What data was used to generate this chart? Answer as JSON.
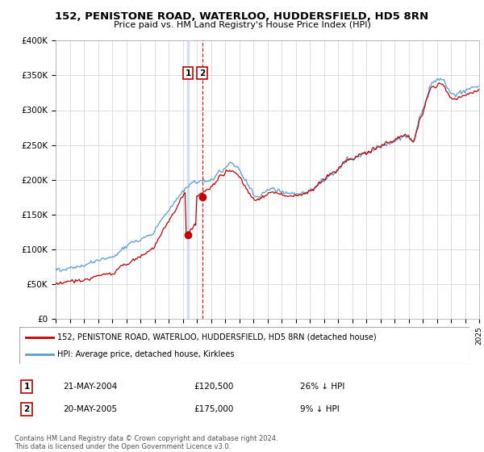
{
  "title": "152, PENISTONE ROAD, WATERLOO, HUDDERSFIELD, HD5 8RN",
  "subtitle": "Price paid vs. HM Land Registry's House Price Index (HPI)",
  "legend_line1": "152, PENISTONE ROAD, WATERLOO, HUDDERSFIELD, HD5 8RN (detached house)",
  "legend_line2": "HPI: Average price, detached house, Kirklees",
  "transaction1_date": "21-MAY-2004",
  "transaction1_price": "£120,500",
  "transaction1_hpi": "26% ↓ HPI",
  "transaction1_year": 2004.38,
  "transaction1_value": 120500,
  "transaction2_date": "20-MAY-2005",
  "transaction2_price": "£175,000",
  "transaction2_hpi": "9% ↓ HPI",
  "transaction2_year": 2005.38,
  "transaction2_value": 175000,
  "footer_line1": "Contains HM Land Registry data © Crown copyright and database right 2024.",
  "footer_line2": "This data is licensed under the Open Government Licence v3.0.",
  "ylim": [
    0,
    400000
  ],
  "yticks": [
    0,
    50000,
    100000,
    150000,
    200000,
    250000,
    300000,
    350000,
    400000
  ],
  "ytick_labels": [
    "£0",
    "£50K",
    "£100K",
    "£150K",
    "£200K",
    "£250K",
    "£300K",
    "£350K",
    "£400K"
  ],
  "hpi_color": "#5b9bd5",
  "price_color": "#c00000",
  "bg_color": "#ffffff",
  "grid_color": "#d0d0d0",
  "hpi_data_years": [
    1995.0,
    1995.083,
    1995.167,
    1995.25,
    1995.333,
    1995.417,
    1995.5,
    1995.583,
    1995.667,
    1995.75,
    1995.833,
    1995.917,
    1996.0,
    1996.083,
    1996.167,
    1996.25,
    1996.333,
    1996.417,
    1996.5,
    1996.583,
    1996.667,
    1996.75,
    1996.833,
    1996.917,
    1997.0,
    1997.083,
    1997.167,
    1997.25,
    1997.333,
    1997.417,
    1997.5,
    1997.583,
    1997.667,
    1997.75,
    1997.833,
    1997.917,
    1998.0,
    1998.083,
    1998.167,
    1998.25,
    1998.333,
    1998.417,
    1998.5,
    1998.583,
    1998.667,
    1998.75,
    1998.833,
    1998.917,
    1999.0,
    1999.083,
    1999.167,
    1999.25,
    1999.333,
    1999.417,
    1999.5,
    1999.583,
    1999.667,
    1999.75,
    1999.833,
    1999.917,
    2000.0,
    2000.083,
    2000.167,
    2000.25,
    2000.333,
    2000.417,
    2000.5,
    2000.583,
    2000.667,
    2000.75,
    2000.833,
    2000.917,
    2001.0,
    2001.083,
    2001.167,
    2001.25,
    2001.333,
    2001.417,
    2001.5,
    2001.583,
    2001.667,
    2001.75,
    2001.833,
    2001.917,
    2002.0,
    2002.083,
    2002.167,
    2002.25,
    2002.333,
    2002.417,
    2002.5,
    2002.583,
    2002.667,
    2002.75,
    2002.833,
    2002.917,
    2003.0,
    2003.083,
    2003.167,
    2003.25,
    2003.333,
    2003.417,
    2003.5,
    2003.583,
    2003.667,
    2003.75,
    2003.833,
    2003.917,
    2004.0,
    2004.083,
    2004.167,
    2004.25,
    2004.333,
    2004.417,
    2004.5,
    2004.583,
    2004.667,
    2004.75,
    2004.833,
    2004.917,
    2005.0,
    2005.083,
    2005.167,
    2005.25,
    2005.333,
    2005.417,
    2005.5,
    2005.583,
    2005.667,
    2005.75,
    2005.833,
    2005.917,
    2006.0,
    2006.083,
    2006.167,
    2006.25,
    2006.333,
    2006.417,
    2006.5,
    2006.583,
    2006.667,
    2006.75,
    2006.833,
    2006.917,
    2007.0,
    2007.083,
    2007.167,
    2007.25,
    2007.333,
    2007.417,
    2007.5,
    2007.583,
    2007.667,
    2007.75,
    2007.833,
    2007.917,
    2008.0,
    2008.083,
    2008.167,
    2008.25,
    2008.333,
    2008.417,
    2008.5,
    2008.583,
    2008.667,
    2008.75,
    2008.833,
    2008.917,
    2009.0,
    2009.083,
    2009.167,
    2009.25,
    2009.333,
    2009.417,
    2009.5,
    2009.583,
    2009.667,
    2009.75,
    2009.833,
    2009.917,
    2010.0,
    2010.083,
    2010.167,
    2010.25,
    2010.333,
    2010.417,
    2010.5,
    2010.583,
    2010.667,
    2010.75,
    2010.833,
    2010.917,
    2011.0,
    2011.083,
    2011.167,
    2011.25,
    2011.333,
    2011.417,
    2011.5,
    2011.583,
    2011.667,
    2011.75,
    2011.833,
    2011.917,
    2012.0,
    2012.083,
    2012.167,
    2012.25,
    2012.333,
    2012.417,
    2012.5,
    2012.583,
    2012.667,
    2012.75,
    2012.833,
    2012.917,
    2013.0,
    2013.083,
    2013.167,
    2013.25,
    2013.333,
    2013.417,
    2013.5,
    2013.583,
    2013.667,
    2013.75,
    2013.833,
    2013.917,
    2014.0,
    2014.083,
    2014.167,
    2014.25,
    2014.333,
    2014.417,
    2014.5,
    2014.583,
    2014.667,
    2014.75,
    2014.833,
    2014.917,
    2015.0,
    2015.083,
    2015.167,
    2015.25,
    2015.333,
    2015.417,
    2015.5,
    2015.583,
    2015.667,
    2015.75,
    2015.833,
    2015.917,
    2016.0,
    2016.083,
    2016.167,
    2016.25,
    2016.333,
    2016.417,
    2016.5,
    2016.583,
    2016.667,
    2016.75,
    2016.833,
    2016.917,
    2017.0,
    2017.083,
    2017.167,
    2017.25,
    2017.333,
    2017.417,
    2017.5,
    2017.583,
    2017.667,
    2017.75,
    2017.833,
    2017.917,
    2018.0,
    2018.083,
    2018.167,
    2018.25,
    2018.333,
    2018.417,
    2018.5,
    2018.583,
    2018.667,
    2018.75,
    2018.833,
    2018.917,
    2019.0,
    2019.083,
    2019.167,
    2019.25,
    2019.333,
    2019.417,
    2019.5,
    2019.583,
    2019.667,
    2019.75,
    2019.833,
    2019.917,
    2020.0,
    2020.083,
    2020.167,
    2020.25,
    2020.333,
    2020.417,
    2020.5,
    2020.583,
    2020.667,
    2020.75,
    2020.833,
    2020.917,
    2021.0,
    2021.083,
    2021.167,
    2021.25,
    2021.333,
    2021.417,
    2021.5,
    2021.583,
    2021.667,
    2021.75,
    2021.833,
    2021.917,
    2022.0,
    2022.083,
    2022.167,
    2022.25,
    2022.333,
    2022.417,
    2022.5,
    2022.583,
    2022.667,
    2022.75,
    2022.833,
    2022.917,
    2023.0,
    2023.083,
    2023.167,
    2023.25,
    2023.333,
    2023.417,
    2023.5,
    2023.583,
    2023.667,
    2023.75,
    2023.833,
    2023.917,
    2024.0,
    2024.083,
    2024.167,
    2024.25,
    2024.333,
    2024.417,
    2024.5,
    2024.583,
    2024.667,
    2024.75,
    2024.833,
    2024.917,
    2025.0
  ],
  "hpi_data_values": [
    72000,
    71500,
    71200,
    71000,
    70800,
    70600,
    70500,
    70600,
    70800,
    71000,
    71500,
    72000,
    72500,
    73000,
    73500,
    73500,
    73800,
    74200,
    74500,
    74800,
    75000,
    75200,
    75500,
    75800,
    76000,
    76500,
    77200,
    78000,
    78800,
    79500,
    80200,
    80800,
    81500,
    82000,
    82500,
    83200,
    84000,
    84500,
    85000,
    85500,
    86000,
    86200,
    86000,
    86300,
    86800,
    87200,
    87500,
    87800,
    88000,
    88500,
    89200,
    91000,
    93000,
    95000,
    96500,
    98000,
    99500,
    100500,
    101500,
    102500,
    104000,
    105500,
    107000,
    108000,
    109000,
    110000,
    110500,
    111000,
    111500,
    112000,
    112500,
    113000,
    113500,
    114500,
    115500,
    116500,
    117500,
    118500,
    119000,
    119500,
    120000,
    120500,
    121500,
    122500,
    127000,
    130000,
    133000,
    135000,
    137000,
    139500,
    142000,
    145000,
    147500,
    150000,
    153000,
    155500,
    157000,
    159000,
    161000,
    163000,
    165000,
    167000,
    169500,
    172000,
    174500,
    177000,
    179500,
    181500,
    183000,
    185000,
    187000,
    188500,
    190000,
    191500,
    193500,
    195000,
    196000,
    196500,
    196500,
    196000,
    196000,
    196200,
    196500,
    197000,
    197500,
    197800,
    198200,
    198500,
    198800,
    199000,
    199500,
    199800,
    200000,
    201000,
    202000,
    203500,
    205000,
    206500,
    208000,
    209500,
    211000,
    212500,
    214000,
    215500,
    217000,
    219000,
    221000,
    222500,
    223500,
    224000,
    224500,
    223500,
    222000,
    220000,
    218000,
    216000,
    214000,
    211000,
    208500,
    206000,
    203000,
    200000,
    197000,
    194000,
    191000,
    188500,
    186500,
    185000,
    178000,
    176500,
    176000,
    175800,
    176000,
    176500,
    177000,
    178000,
    179500,
    181000,
    182000,
    183000,
    184000,
    185000,
    185500,
    186000,
    186500,
    186500,
    185800,
    185200,
    184500,
    183800,
    183200,
    182800,
    182000,
    181800,
    181500,
    181500,
    181500,
    181000,
    180500,
    180200,
    179800,
    179500,
    179800,
    180200,
    180000,
    180200,
    180500,
    180800,
    181000,
    181200,
    181500,
    181800,
    182000,
    182200,
    182500,
    183000,
    184000,
    185000,
    186200,
    187500,
    188800,
    190000,
    191500,
    193000,
    194500,
    196000,
    197500,
    198500,
    198000,
    200000,
    202000,
    204000,
    206000,
    207500,
    208500,
    209000,
    209500,
    210000,
    211000,
    212000,
    215000,
    217000,
    219000,
    221000,
    223000,
    224500,
    226000,
    227500,
    228500,
    229500,
    230000,
    230500,
    228000,
    229000,
    230000,
    231000,
    232000,
    233000,
    234000,
    235000,
    236000,
    237000,
    238000,
    238500,
    236000,
    237500,
    238500,
    239500,
    240500,
    241500,
    242500,
    243500,
    244500,
    245500,
    246500,
    247000,
    247000,
    247500,
    248500,
    249500,
    250500,
    251000,
    251500,
    252000,
    252500,
    253000,
    253500,
    254000,
    255000,
    256000,
    257500,
    258500,
    259500,
    260500,
    261500,
    262000,
    262500,
    263000,
    263200,
    263000,
    262000,
    260000,
    258000,
    256000,
    256500,
    260000,
    265000,
    272000,
    279000,
    286000,
    291000,
    294000,
    298000,
    303000,
    309000,
    315000,
    321000,
    327000,
    333000,
    337000,
    339000,
    340000,
    340500,
    339500,
    342000,
    344000,
    345000,
    346000,
    345500,
    344500,
    342000,
    339000,
    336000,
    333000,
    330500,
    328000,
    325000,
    323500,
    322000,
    322000,
    322500,
    323000,
    324000,
    325000,
    326000,
    326500,
    327000,
    327500,
    327000,
    328000,
    329000,
    330000,
    331000,
    331500,
    332000,
    332500,
    333000,
    333500,
    334000,
    334500,
    335000
  ],
  "price_data_years": [
    1995.0,
    1995.083,
    1995.167,
    1995.25,
    1995.333,
    1995.417,
    1995.5,
    1995.583,
    1995.667,
    1995.75,
    1995.833,
    1995.917,
    1996.0,
    1996.083,
    1996.167,
    1996.25,
    1996.333,
    1996.417,
    1996.5,
    1996.583,
    1996.667,
    1996.75,
    1996.833,
    1996.917,
    1997.0,
    1997.083,
    1997.167,
    1997.25,
    1997.333,
    1997.417,
    1997.5,
    1997.583,
    1997.667,
    1997.75,
    1997.833,
    1997.917,
    1998.0,
    1998.083,
    1998.167,
    1998.25,
    1998.333,
    1998.417,
    1998.5,
    1998.583,
    1998.667,
    1998.75,
    1998.833,
    1998.917,
    1999.0,
    1999.083,
    1999.167,
    1999.25,
    1999.333,
    1999.417,
    1999.5,
    1999.583,
    1999.667,
    1999.75,
    1999.833,
    1999.917,
    2000.0,
    2000.083,
    2000.167,
    2000.25,
    2000.333,
    2000.417,
    2000.5,
    2000.583,
    2000.667,
    2000.75,
    2000.833,
    2000.917,
    2001.0,
    2001.083,
    2001.167,
    2001.25,
    2001.333,
    2001.417,
    2001.5,
    2001.583,
    2001.667,
    2001.75,
    2001.833,
    2001.917,
    2002.0,
    2002.083,
    2002.167,
    2002.25,
    2002.333,
    2002.417,
    2002.5,
    2002.583,
    2002.667,
    2002.75,
    2002.833,
    2002.917,
    2003.0,
    2003.083,
    2003.167,
    2003.25,
    2003.333,
    2003.417,
    2003.5,
    2003.583,
    2003.667,
    2003.75,
    2003.833,
    2003.917,
    2004.0,
    2004.083,
    2004.167,
    2004.25,
    2004.333,
    2004.417,
    2004.5,
    2004.583,
    2004.667,
    2004.75,
    2004.833,
    2004.917,
    2005.0,
    2005.083,
    2005.167,
    2005.25,
    2005.333,
    2005.417,
    2005.5,
    2005.583,
    2005.667,
    2005.75,
    2005.833,
    2005.917,
    2006.0,
    2006.083,
    2006.167,
    2006.25,
    2006.333,
    2006.417,
    2006.5,
    2006.583,
    2006.667,
    2006.75,
    2006.833,
    2006.917,
    2007.0,
    2007.083,
    2007.167,
    2007.25,
    2007.333,
    2007.417,
    2007.5,
    2007.583,
    2007.667,
    2007.75,
    2007.833,
    2007.917,
    2008.0,
    2008.083,
    2008.167,
    2008.25,
    2008.333,
    2008.417,
    2008.5,
    2008.583,
    2008.667,
    2008.75,
    2008.833,
    2008.917,
    2009.0,
    2009.083,
    2009.167,
    2009.25,
    2009.333,
    2009.417,
    2009.5,
    2009.583,
    2009.667,
    2009.75,
    2009.833,
    2009.917,
    2010.0,
    2010.083,
    2010.167,
    2010.25,
    2010.333,
    2010.417,
    2010.5,
    2010.583,
    2010.667,
    2010.75,
    2010.833,
    2010.917,
    2011.0,
    2011.083,
    2011.167,
    2011.25,
    2011.333,
    2011.417,
    2011.5,
    2011.583,
    2011.667,
    2011.75,
    2011.833,
    2011.917,
    2012.0,
    2012.083,
    2012.167,
    2012.25,
    2012.333,
    2012.417,
    2012.5,
    2012.583,
    2012.667,
    2012.75,
    2012.833,
    2012.917,
    2013.0,
    2013.083,
    2013.167,
    2013.25,
    2013.333,
    2013.417,
    2013.5,
    2013.583,
    2013.667,
    2013.75,
    2013.833,
    2013.917,
    2014.0,
    2014.083,
    2014.167,
    2014.25,
    2014.333,
    2014.417,
    2014.5,
    2014.583,
    2014.667,
    2014.75,
    2014.833,
    2014.917,
    2015.0,
    2015.083,
    2015.167,
    2015.25,
    2015.333,
    2015.417,
    2015.5,
    2015.583,
    2015.667,
    2015.75,
    2015.833,
    2015.917,
    2016.0,
    2016.083,
    2016.167,
    2016.25,
    2016.333,
    2016.417,
    2016.5,
    2016.583,
    2016.667,
    2016.75,
    2016.833,
    2016.917,
    2017.0,
    2017.083,
    2017.167,
    2017.25,
    2017.333,
    2017.417,
    2017.5,
    2017.583,
    2017.667,
    2017.75,
    2017.833,
    2017.917,
    2018.0,
    2018.083,
    2018.167,
    2018.25,
    2018.333,
    2018.417,
    2018.5,
    2018.583,
    2018.667,
    2018.75,
    2018.833,
    2018.917,
    2019.0,
    2019.083,
    2019.167,
    2019.25,
    2019.333,
    2019.417,
    2019.5,
    2019.583,
    2019.667,
    2019.75,
    2019.833,
    2019.917,
    2020.0,
    2020.083,
    2020.167,
    2020.25,
    2020.333,
    2020.417,
    2020.5,
    2020.583,
    2020.667,
    2020.75,
    2020.833,
    2020.917,
    2021.0,
    2021.083,
    2021.167,
    2021.25,
    2021.333,
    2021.417,
    2021.5,
    2021.583,
    2021.667,
    2021.75,
    2021.833,
    2021.917,
    2022.0,
    2022.083,
    2022.167,
    2022.25,
    2022.333,
    2022.417,
    2022.5,
    2022.583,
    2022.667,
    2022.75,
    2022.833,
    2022.917,
    2023.0,
    2023.083,
    2023.167,
    2023.25,
    2023.333,
    2023.417,
    2023.5,
    2023.583,
    2023.667,
    2023.75,
    2023.833,
    2023.917,
    2024.0,
    2024.083,
    2024.167,
    2024.25,
    2024.333,
    2024.417,
    2024.5,
    2024.583,
    2024.667,
    2024.75,
    2024.833,
    2024.917,
    2025.0
  ],
  "price_data_values": [
    50000,
    50200,
    50500,
    50800,
    51000,
    51200,
    51500,
    51700,
    52000,
    52200,
    52500,
    52800,
    53000,
    53200,
    53500,
    53800,
    54000,
    54200,
    54500,
    54800,
    55000,
    55200,
    55500,
    55700,
    56000,
    56200,
    56500,
    57000,
    57500,
    58000,
    58500,
    59000,
    59500,
    60000,
    60500,
    61000,
    61500,
    62000,
    62500,
    63000,
    63300,
    63600,
    64000,
    64200,
    64500,
    64800,
    65000,
    65200,
    65500,
    66000,
    67000,
    68500,
    70000,
    71500,
    73000,
    74500,
    75500,
    76500,
    77000,
    77500,
    78000,
    79000,
    80000,
    81000,
    82000,
    83000,
    84000,
    85000,
    86000,
    87000,
    88000,
    89000,
    90000,
    91000,
    92000,
    93000,
    94000,
    95000,
    96000,
    97000,
    98000,
    99000,
    100000,
    101000,
    104000,
    107000,
    110000,
    113000,
    116000,
    119000,
    122000,
    125000,
    128000,
    131000,
    134000,
    137000,
    140000,
    143000,
    146000,
    149000,
    152000,
    155000,
    158000,
    161000,
    164000,
    167000,
    170000,
    173000,
    176000,
    179000,
    182000,
    120500,
    122000,
    124000,
    126000,
    128000,
    130000,
    132000,
    133000,
    134000,
    175000,
    176000,
    178000,
    180000,
    181000,
    182000,
    183000,
    184000,
    184500,
    185000,
    185500,
    186000,
    190000,
    191000,
    193000,
    195000,
    197000,
    200000,
    202000,
    204000,
    206000,
    207000,
    208000,
    209000,
    210000,
    211000,
    212000,
    212500,
    213000,
    213500,
    213000,
    212000,
    210500,
    209000,
    207500,
    206000,
    204500,
    202000,
    199000,
    196000,
    193000,
    190000,
    187000,
    184000,
    181000,
    178500,
    176000,
    174000,
    172000,
    171000,
    171000,
    171500,
    172000,
    172500,
    173000,
    174000,
    175500,
    177000,
    178000,
    179000,
    180000,
    181000,
    181500,
    182000,
    182500,
    182000,
    181500,
    181000,
    180000,
    179500,
    179000,
    178500,
    178000,
    177800,
    177500,
    177500,
    177800,
    177500,
    177000,
    176800,
    176500,
    176200,
    176500,
    177000,
    177000,
    177200,
    177500,
    178000,
    178500,
    179000,
    179500,
    180000,
    180500,
    181000,
    181500,
    182000,
    183000,
    184000,
    185500,
    187000,
    188500,
    190000,
    191500,
    193000,
    194500,
    196000,
    197500,
    198500,
    199000,
    201000,
    203000,
    205000,
    207000,
    208500,
    209500,
    210000,
    210500,
    211000,
    212000,
    213000,
    215000,
    217000,
    219000,
    221000,
    223000,
    224500,
    226000,
    227500,
    228500,
    229500,
    230000,
    230500,
    229000,
    230000,
    231500,
    232500,
    233500,
    234500,
    235500,
    236500,
    237500,
    238000,
    239000,
    239500,
    237000,
    238500,
    239500,
    240500,
    241500,
    242500,
    243500,
    244500,
    245500,
    246500,
    247500,
    248000,
    248000,
    249000,
    250000,
    251000,
    252000,
    252500,
    253000,
    253500,
    254000,
    254500,
    255000,
    255500,
    256000,
    257000,
    258500,
    260000,
    261000,
    262000,
    262500,
    263000,
    263500,
    264000,
    263800,
    263500,
    263000,
    260500,
    258000,
    256000,
    256000,
    259000,
    264500,
    271000,
    278000,
    284000,
    289000,
    292000,
    295000,
    300000,
    306000,
    312000,
    317500,
    323000,
    328000,
    331500,
    333000,
    333000,
    333500,
    332500,
    334500,
    336500,
    337500,
    338500,
    338000,
    337000,
    335000,
    332500,
    329500,
    327000,
    324000,
    321500,
    319000,
    317500,
    316000,
    315500,
    316000,
    316500,
    317500,
    318500,
    319500,
    320000,
    320500,
    321000,
    320500,
    321500,
    323000,
    324000,
    325000,
    325500,
    326000,
    326500,
    327000,
    327500,
    328000,
    328500,
    329000
  ]
}
